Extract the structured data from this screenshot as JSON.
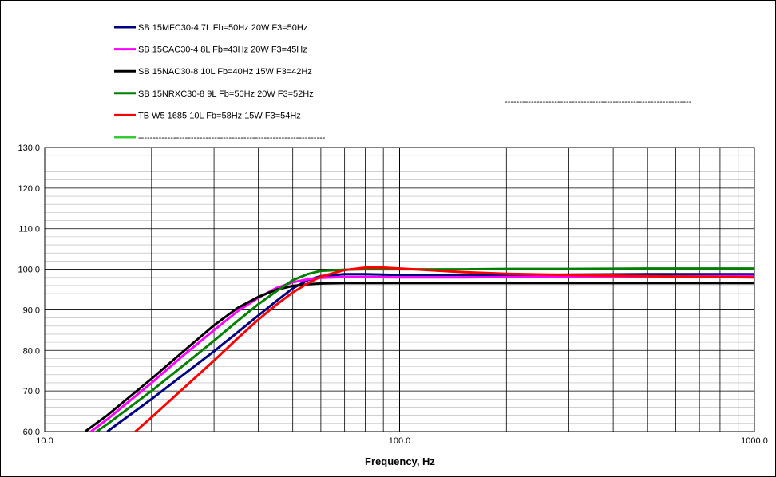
{
  "chart_data": {
    "type": "line",
    "title": "",
    "xlabel": "Frequency, Hz",
    "ylabel": "",
    "x_scale": "log",
    "xlim": [
      10,
      1000
    ],
    "ylim": [
      60,
      130
    ],
    "x_ticks": [
      "10.0",
      "100.0",
      "1000.0"
    ],
    "y_ticks": [
      "60.0",
      "70.0",
      "80.0",
      "90.0",
      "100.0",
      "110.0",
      "120.0",
      "130.0"
    ],
    "grid": true,
    "legend_position": "top-left",
    "extra_label": "----------------------------------------------------------------",
    "series": [
      {
        "name": "SB 15MFC30-4 7L Fb=50Hz 20W F3=50Hz",
        "color": "#000080",
        "x": [
          15,
          20,
          25,
          30,
          35,
          40,
          45,
          50,
          55,
          60,
          70,
          80,
          100,
          150,
          200,
          300,
          500,
          700,
          1000
        ],
        "y": [
          60.0,
          68.0,
          74.5,
          79.8,
          84.5,
          88.6,
          92.2,
          95.3,
          97.3,
          98.3,
          98.8,
          98.8,
          98.6,
          98.6,
          98.6,
          98.7,
          98.8,
          98.8,
          98.8
        ]
      },
      {
        "name": "SB 15CAC30-4 8L Fb=43Hz 20W F3=45Hz",
        "color": "#ff00ff",
        "x": [
          13.5,
          15,
          20,
          25,
          30,
          35,
          40,
          45,
          50,
          55,
          60,
          70,
          80,
          100,
          150,
          200,
          300,
          500,
          1000
        ],
        "y": [
          60.0,
          63.0,
          72.0,
          79.3,
          85.0,
          89.7,
          93.0,
          95.4,
          96.8,
          97.5,
          97.9,
          98.1,
          98.1,
          98.0,
          98.0,
          98.1,
          98.2,
          98.2,
          98.3
        ]
      },
      {
        "name": "SB 15NAC30-8 10L Fb=40Hz 15W F3=42Hz",
        "color": "#000000",
        "x": [
          13,
          15,
          20,
          25,
          30,
          35,
          40,
          45,
          50,
          55,
          60,
          70,
          80,
          100,
          150,
          200,
          300,
          500,
          1000
        ],
        "y": [
          60.0,
          64.0,
          73.0,
          80.3,
          86.2,
          90.5,
          93.2,
          95.0,
          95.9,
          96.3,
          96.5,
          96.6,
          96.6,
          96.6,
          96.6,
          96.6,
          96.6,
          96.6,
          96.6
        ]
      },
      {
        "name": "SB 15NRXC30-8 9L Fb=50Hz 20W F3=52Hz",
        "color": "#008000",
        "x": [
          14,
          15,
          20,
          25,
          30,
          35,
          40,
          45,
          50,
          55,
          60,
          70,
          80,
          100,
          150,
          200,
          300,
          500,
          1000
        ],
        "y": [
          60.0,
          61.8,
          70.0,
          76.8,
          82.4,
          87.3,
          91.4,
          94.6,
          97.3,
          98.8,
          99.6,
          99.9,
          100.0,
          100.0,
          100.0,
          100.1,
          100.1,
          100.2,
          100.2
        ]
      },
      {
        "name": "TB W5 1685 10L Fb=58Hz 15W F3=54Hz",
        "color": "#ff0000",
        "x": [
          18,
          20,
          25,
          30,
          35,
          40,
          45,
          50,
          55,
          60,
          70,
          80,
          90,
          100,
          120,
          150,
          200,
          300,
          500,
          1000
        ],
        "y": [
          60.0,
          63.5,
          71.2,
          77.5,
          83.0,
          87.6,
          91.3,
          94.3,
          96.5,
          98.2,
          99.8,
          100.4,
          100.4,
          100.2,
          99.8,
          99.3,
          98.9,
          98.6,
          98.3,
          98.0
        ]
      },
      {
        "name": "----------------------------------------------------------------",
        "color": "#33cc33",
        "x": [],
        "y": []
      }
    ]
  }
}
